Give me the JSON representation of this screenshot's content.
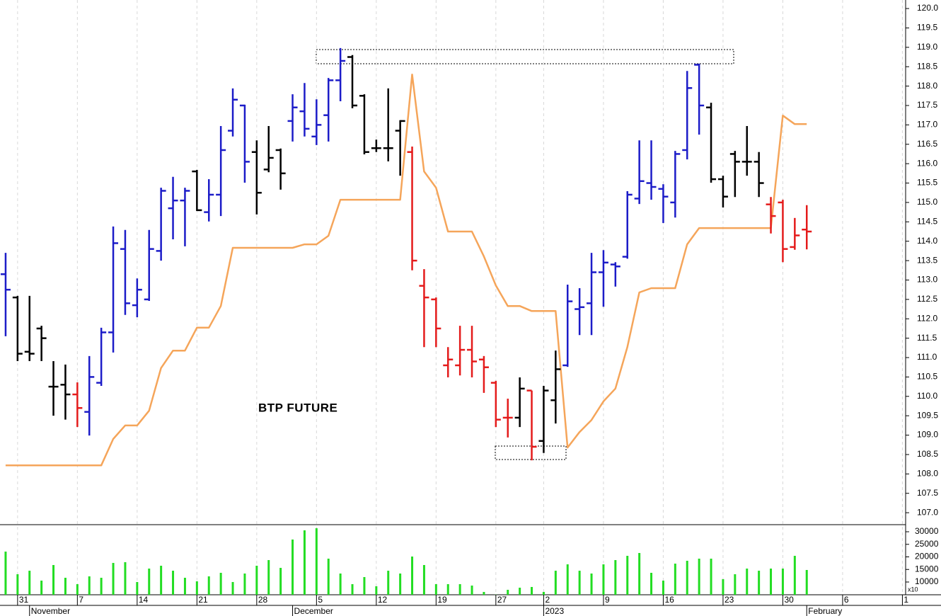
{
  "chart_data": {
    "type": "ohlc",
    "title": "BTP FUTURE",
    "xlim": [
      -0.47,
      75.27
    ],
    "xticks": [
      {
        "value": 1,
        "label": "31"
      },
      {
        "value": 6,
        "label": "7"
      },
      {
        "value": 11,
        "label": "14"
      },
      {
        "value": 16,
        "label": "21"
      },
      {
        "value": 21,
        "label": "28"
      },
      {
        "value": 26,
        "label": "5"
      },
      {
        "value": 31,
        "label": "12"
      },
      {
        "value": 36,
        "label": "19"
      },
      {
        "value": 41,
        "label": "27"
      },
      {
        "value": 45,
        "label": "2"
      },
      {
        "value": 50,
        "label": "9"
      },
      {
        "value": 55,
        "label": "16"
      },
      {
        "value": 60,
        "label": "23"
      },
      {
        "value": 65,
        "label": "30"
      },
      {
        "value": 70,
        "label": "6"
      },
      {
        "value": 75,
        "label": "1"
      }
    ],
    "month_labels": [
      {
        "value": 2,
        "label": "November"
      },
      {
        "value": 24,
        "label": "December"
      },
      {
        "value": 45,
        "label": "2023"
      },
      {
        "value": 67,
        "label": "February"
      }
    ],
    "ylim": [
      106.71,
      120.22
    ],
    "yticks": [
      {
        "value": 107,
        "label": "107.0"
      },
      {
        "value": 107.5,
        "label": "107.5"
      },
      {
        "value": 108,
        "label": "108.0"
      },
      {
        "value": 108.5,
        "label": "108.5"
      },
      {
        "value": 109,
        "label": "109.0"
      },
      {
        "value": 109.5,
        "label": "109.5"
      },
      {
        "value": 110,
        "label": "110.0"
      },
      {
        "value": 110.5,
        "label": "110.5"
      },
      {
        "value": 111,
        "label": "111.0"
      },
      {
        "value": 111.5,
        "label": "111.5"
      },
      {
        "value": 112,
        "label": "112.0"
      },
      {
        "value": 112.5,
        "label": "112.5"
      },
      {
        "value": 113,
        "label": "113.0"
      },
      {
        "value": 113.5,
        "label": "113.5"
      },
      {
        "value": 114,
        "label": "114.0"
      },
      {
        "value": 114.5,
        "label": "114.5"
      },
      {
        "value": 115,
        "label": "115.0"
      },
      {
        "value": 115.5,
        "label": "115.5"
      },
      {
        "value": 116,
        "label": "116.0"
      },
      {
        "value": 116.5,
        "label": "116.5"
      },
      {
        "value": 117,
        "label": "117.0"
      },
      {
        "value": 117.5,
        "label": "117.5"
      },
      {
        "value": 118,
        "label": "118.0"
      },
      {
        "value": 118.5,
        "label": "118.5"
      },
      {
        "value": 119,
        "label": "119.0"
      },
      {
        "value": 119.5,
        "label": "119.5"
      },
      {
        "value": 120,
        "label": "120.0"
      }
    ],
    "ohlc": {
      "open": [
        113.15,
        112.55,
        111.15,
        111.75,
        110.25,
        110.3,
        110.05,
        109.6,
        110.35,
        111.65,
        113.8,
        112.35,
        112.5,
        113.75,
        114.85,
        115.05,
        115.8,
        114.75,
        115.2,
        116.85,
        117.5,
        116.3,
        115.85,
        116.35,
        117.1,
        117.35,
        116.7,
        117.25,
        118.15,
        118.75,
        117.75,
        116.4,
        116.4,
        116.85,
        116.3,
        112.85,
        112.5,
        110.8,
        110.8,
        111.2,
        110.95,
        110.35,
        109.45,
        109.45,
        110.15,
        108.85,
        109.9,
        110.8,
        112.25,
        112.4,
        113.2,
        113.4,
        113.6,
        115.1,
        115.5,
        115.35,
        115.0,
        116.35,
        118.55,
        117.45,
        115.6,
        116.25,
        116.05,
        116.05,
        114.95,
        115.0,
        113.85,
        114.3
      ],
      "high": [
        113.7,
        112.59,
        112.59,
        111.82,
        110.91,
        110.82,
        110.36,
        111.04,
        111.77,
        114.38,
        114.29,
        113.04,
        114.29,
        115.38,
        115.66,
        115.38,
        115.84,
        115.6,
        116.97,
        117.94,
        117.52,
        116.6,
        116.97,
        116.39,
        117.79,
        118.08,
        117.66,
        118.21,
        118.98,
        118.8,
        117.79,
        116.62,
        117.94,
        117.12,
        116.44,
        113.28,
        112.55,
        111.27,
        111.82,
        111.82,
        111.04,
        110.4,
        109.94,
        110.49,
        110.15,
        110.27,
        111.18,
        112.88,
        112.79,
        113.7,
        113.77,
        113.46,
        115.29,
        116.6,
        116.6,
        115.47,
        116.33,
        118.39,
        118.58,
        117.57,
        115.69,
        116.33,
        116.97,
        116.3,
        115.14,
        115.07,
        114.6,
        114.93
      ],
      "low": [
        111.55,
        110.91,
        110.91,
        110.91,
        109.5,
        109.4,
        109.21,
        108.99,
        110.27,
        111.13,
        112.1,
        112.04,
        112.46,
        113.5,
        114.05,
        113.87,
        114.78,
        114.51,
        114.65,
        116.7,
        115.51,
        114.69,
        115.78,
        115.33,
        116.57,
        116.7,
        116.48,
        116.57,
        117.61,
        117.43,
        116.24,
        116.3,
        116.06,
        115.69,
        113.25,
        111.27,
        111.27,
        110.49,
        110.54,
        110.49,
        110.09,
        109.21,
        108.94,
        109.21,
        108.35,
        108.54,
        109.3,
        110.76,
        111.58,
        111.58,
        112.31,
        112.83,
        113.55,
        114.96,
        115.07,
        114.47,
        114.61,
        116.11,
        116.75,
        115.51,
        114.87,
        115.14,
        115.69,
        115.14,
        114.2,
        113.46,
        113.78,
        113.79
      ],
      "close": [
        112.75,
        111.1,
        111.1,
        111.5,
        110.25,
        110.05,
        109.7,
        110.5,
        111.65,
        113.95,
        112.4,
        112.75,
        113.8,
        115.3,
        115.05,
        115.3,
        114.8,
        115.2,
        116.35,
        117.65,
        116.05,
        115.25,
        116.15,
        115.75,
        117.45,
        116.9,
        117.0,
        118.15,
        118.65,
        117.5,
        116.3,
        116.4,
        116.4,
        117.1,
        113.5,
        112.55,
        111.75,
        110.95,
        111.2,
        110.9,
        110.75,
        109.4,
        109.45,
        110.2,
        108.7,
        110.15,
        110.7,
        112.45,
        112.3,
        113.2,
        113.45,
        113.35,
        115.2,
        115.55,
        115.4,
        115.15,
        116.25,
        117.95,
        117.5,
        115.6,
        115.15,
        116.05,
        116.05,
        115.5,
        114.65,
        113.8,
        114.15,
        114.25
      ],
      "colors": [
        "#1c1cc8",
        "#000000",
        "#000000",
        "#000000",
        "#000000",
        "#000000",
        "#e41b1b",
        "#1c1cc8",
        "#1c1cc8",
        "#1c1cc8",
        "#1c1cc8",
        "#1c1cc8",
        "#1c1cc8",
        "#1c1cc8",
        "#1c1cc8",
        "#1c1cc8",
        "#000000",
        "#1c1cc8",
        "#1c1cc8",
        "#1c1cc8",
        "#1c1cc8",
        "#000000",
        "#000000",
        "#000000",
        "#1c1cc8",
        "#1c1cc8",
        "#1c1cc8",
        "#1c1cc8",
        "#1c1cc8",
        "#000000",
        "#000000",
        "#000000",
        "#000000",
        "#000000",
        "#e41b1b",
        "#e41b1b",
        "#e41b1b",
        "#e41b1b",
        "#e41b1b",
        "#e41b1b",
        "#e41b1b",
        "#e41b1b",
        "#e41b1b",
        "#000000",
        "#e41b1b",
        "#000000",
        "#000000",
        "#1c1cc8",
        "#1c1cc8",
        "#1c1cc8",
        "#1c1cc8",
        "#1c1cc8",
        "#1c1cc8",
        "#1c1cc8",
        "#1c1cc8",
        "#1c1cc8",
        "#1c1cc8",
        "#1c1cc8",
        "#1c1cc8",
        "#000000",
        "#000000",
        "#000000",
        "#000000",
        "#000000",
        "#e41b1b",
        "#e41b1b",
        "#e41b1b",
        "#e41b1b"
      ]
    },
    "line": {
      "color": "#f5a55a",
      "values": [
        108.22,
        108.22,
        108.22,
        108.22,
        108.22,
        108.22,
        108.22,
        108.22,
        108.22,
        108.9,
        109.25,
        109.25,
        109.63,
        110.73,
        111.18,
        111.18,
        111.77,
        111.77,
        112.33,
        113.83,
        113.83,
        113.83,
        113.83,
        113.83,
        113.83,
        113.92,
        113.92,
        114.14,
        115.07,
        115.07,
        115.07,
        115.07,
        115.07,
        115.07,
        118.3,
        115.8,
        115.38,
        114.25,
        114.25,
        114.25,
        113.61,
        112.86,
        112.33,
        112.33,
        112.2,
        112.2,
        112.2,
        108.68,
        109.08,
        109.39,
        109.87,
        110.2,
        111.27,
        112.68,
        112.79,
        112.79,
        112.79,
        113.92,
        114.34,
        114.34,
        114.34,
        114.34,
        114.34,
        114.34,
        114.34,
        117.24,
        117.02,
        117.02
      ]
    },
    "volume": {
      "color": "#22dd22",
      "ylim": [
        4930,
        32540
      ],
      "yticks": [
        10000,
        15000,
        20000,
        25000,
        30000
      ],
      "scale_label": "x10",
      "values": [
        22100,
        13100,
        14500,
        10560,
        16760,
        11690,
        9150,
        12250,
        11690,
        17600,
        17890,
        10000,
        15350,
        16480,
        14500,
        11690,
        10280,
        12250,
        13660,
        10000,
        13380,
        16480,
        18730,
        15630,
        26900,
        30560,
        31410,
        19300,
        13380,
        9150,
        11970,
        8310,
        14500,
        13380,
        20140,
        16760,
        9150,
        9150,
        9150,
        8590,
        6060,
        5000,
        6900,
        7750,
        8030,
        6060,
        14500,
        17040,
        14500,
        13380,
        17040,
        18730,
        20420,
        21550,
        13660,
        10560,
        17320,
        18450,
        19300,
        19300,
        11130,
        13100,
        15350,
        14500,
        15350,
        15350,
        20420,
        14790
      ]
    }
  }
}
